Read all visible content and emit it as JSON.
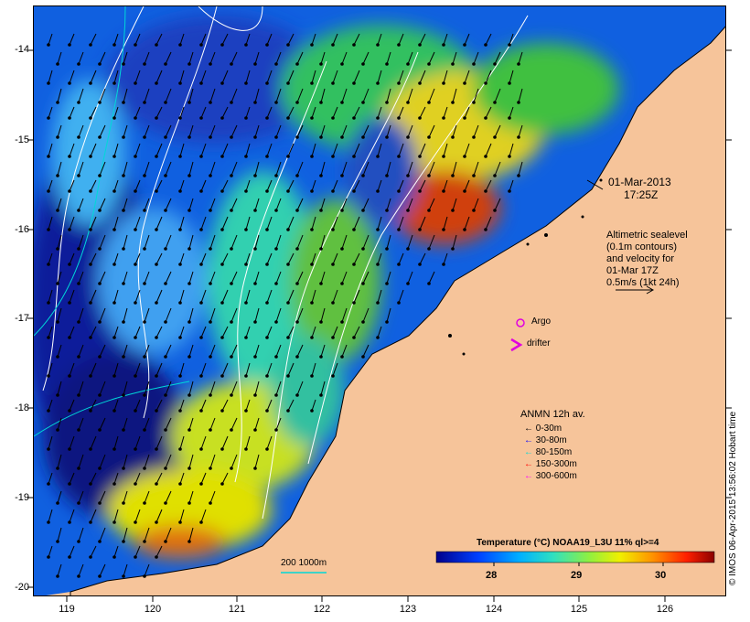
{
  "map": {
    "y_ticks": [
      "-14",
      "-15",
      "-16",
      "-17",
      "-18",
      "-19",
      "-20"
    ],
    "x_ticks": [
      "119",
      "120",
      "121",
      "122",
      "123",
      "124",
      "125",
      "126"
    ],
    "date": "01-Mar-2013",
    "time": "17:25Z",
    "altimetry_text": [
      "Altimetric sealevel",
      "(0.1m contours)",
      "and velocity for",
      "01-Mar 17Z",
      "0.5m/s (1kt 24h)"
    ],
    "argo_label": "Argo",
    "drifter_label": "drifter",
    "anmn_title": "ANMN 12h av.",
    "anmn_items": [
      {
        "label": "0-30m",
        "color": "#000000"
      },
      {
        "label": "30-80m",
        "color": "#0000ff"
      },
      {
        "label": "80-150m",
        "color": "#00d8d8"
      },
      {
        "label": "150-300m",
        "color": "#ff0000"
      },
      {
        "label": "300-600m",
        "color": "#ff00ff"
      }
    ],
    "isobath_label": "200  1000m",
    "colorbar_title": "Temperature (°C) NOAA19_L3U 11% ql>=4",
    "colorbar_ticks": [
      "28",
      "29",
      "30"
    ],
    "credit": "© IMOS 06-Apr-2015 13:56:02 Hobart time",
    "colors": {
      "land": "#f6c49a",
      "argo": "#e000e0",
      "cyan": "#00d8d8"
    }
  }
}
